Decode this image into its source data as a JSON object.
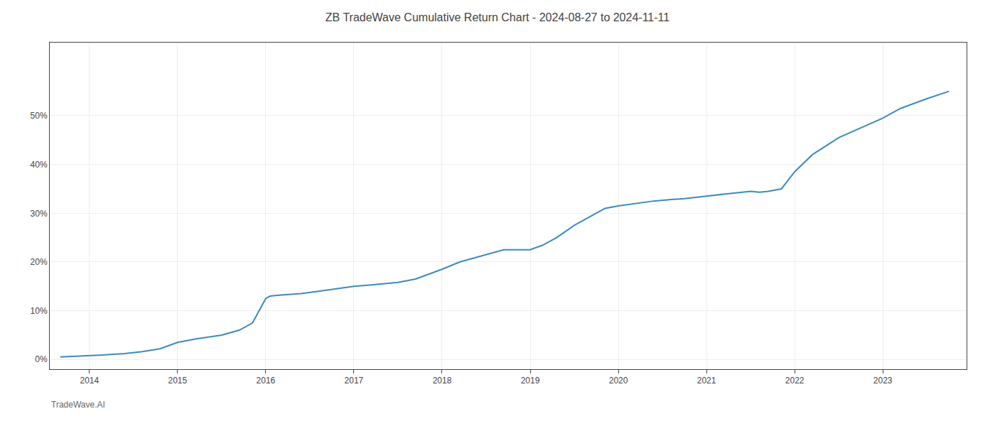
{
  "chart_data": {
    "type": "line",
    "title": "ZB TradeWave Cumulative Return Chart - 2024-08-27 to 2024-11-11",
    "annotations": [
      "TradeWave.AI"
    ],
    "color": "#3a8abf",
    "x": [
      2013.67,
      2014.0,
      2014.15,
      2014.4,
      2014.6,
      2014.8,
      2015.0,
      2015.2,
      2015.5,
      2015.7,
      2015.85,
      2016.0,
      2016.05,
      2016.15,
      2016.4,
      2016.6,
      2016.8,
      2017.0,
      2017.2,
      2017.5,
      2017.7,
      2018.0,
      2018.2,
      2018.5,
      2018.7,
      2019.0,
      2019.15,
      2019.3,
      2019.5,
      2019.7,
      2019.85,
      2020.0,
      2020.2,
      2020.4,
      2020.6,
      2020.75,
      2021.0,
      2021.15,
      2021.3,
      2021.5,
      2021.6,
      2021.7,
      2021.85,
      2022.0,
      2022.2,
      2022.5,
      2022.75,
      2023.0,
      2023.2,
      2023.5,
      2023.75
    ],
    "values": [
      0.5,
      0.7,
      0.9,
      1.2,
      1.6,
      2.2,
      3.5,
      4.2,
      5.0,
      6.0,
      7.5,
      12.5,
      13.0,
      13.2,
      13.5,
      14.0,
      14.5,
      15.0,
      15.3,
      15.8,
      16.5,
      18.5,
      20.0,
      21.5,
      22.5,
      22.5,
      23.5,
      25.0,
      27.5,
      29.5,
      31.0,
      31.5,
      32.0,
      32.5,
      32.8,
      33.0,
      33.5,
      33.8,
      34.0,
      34.5,
      34.3,
      34.5,
      35.0,
      38.5,
      42.0,
      45.5,
      47.5,
      49.5,
      51.5,
      53.5,
      55.0
    ],
    "xlim": [
      2013.55,
      2023.95
    ],
    "xticks": [
      2014,
      2015,
      2016,
      2017,
      2018,
      2019,
      2020,
      2021,
      2022,
      2023
    ],
    "ylim": [
      -2,
      65
    ],
    "yticks": [
      {
        "value": 0,
        "label": "0%"
      },
      {
        "value": 10,
        "label": "10%"
      },
      {
        "value": 20,
        "label": "20%"
      },
      {
        "value": 30,
        "label": "30%"
      },
      {
        "value": 40,
        "label": "40%"
      },
      {
        "value": 50,
        "label": "50%"
      }
    ],
    "grid": true
  }
}
